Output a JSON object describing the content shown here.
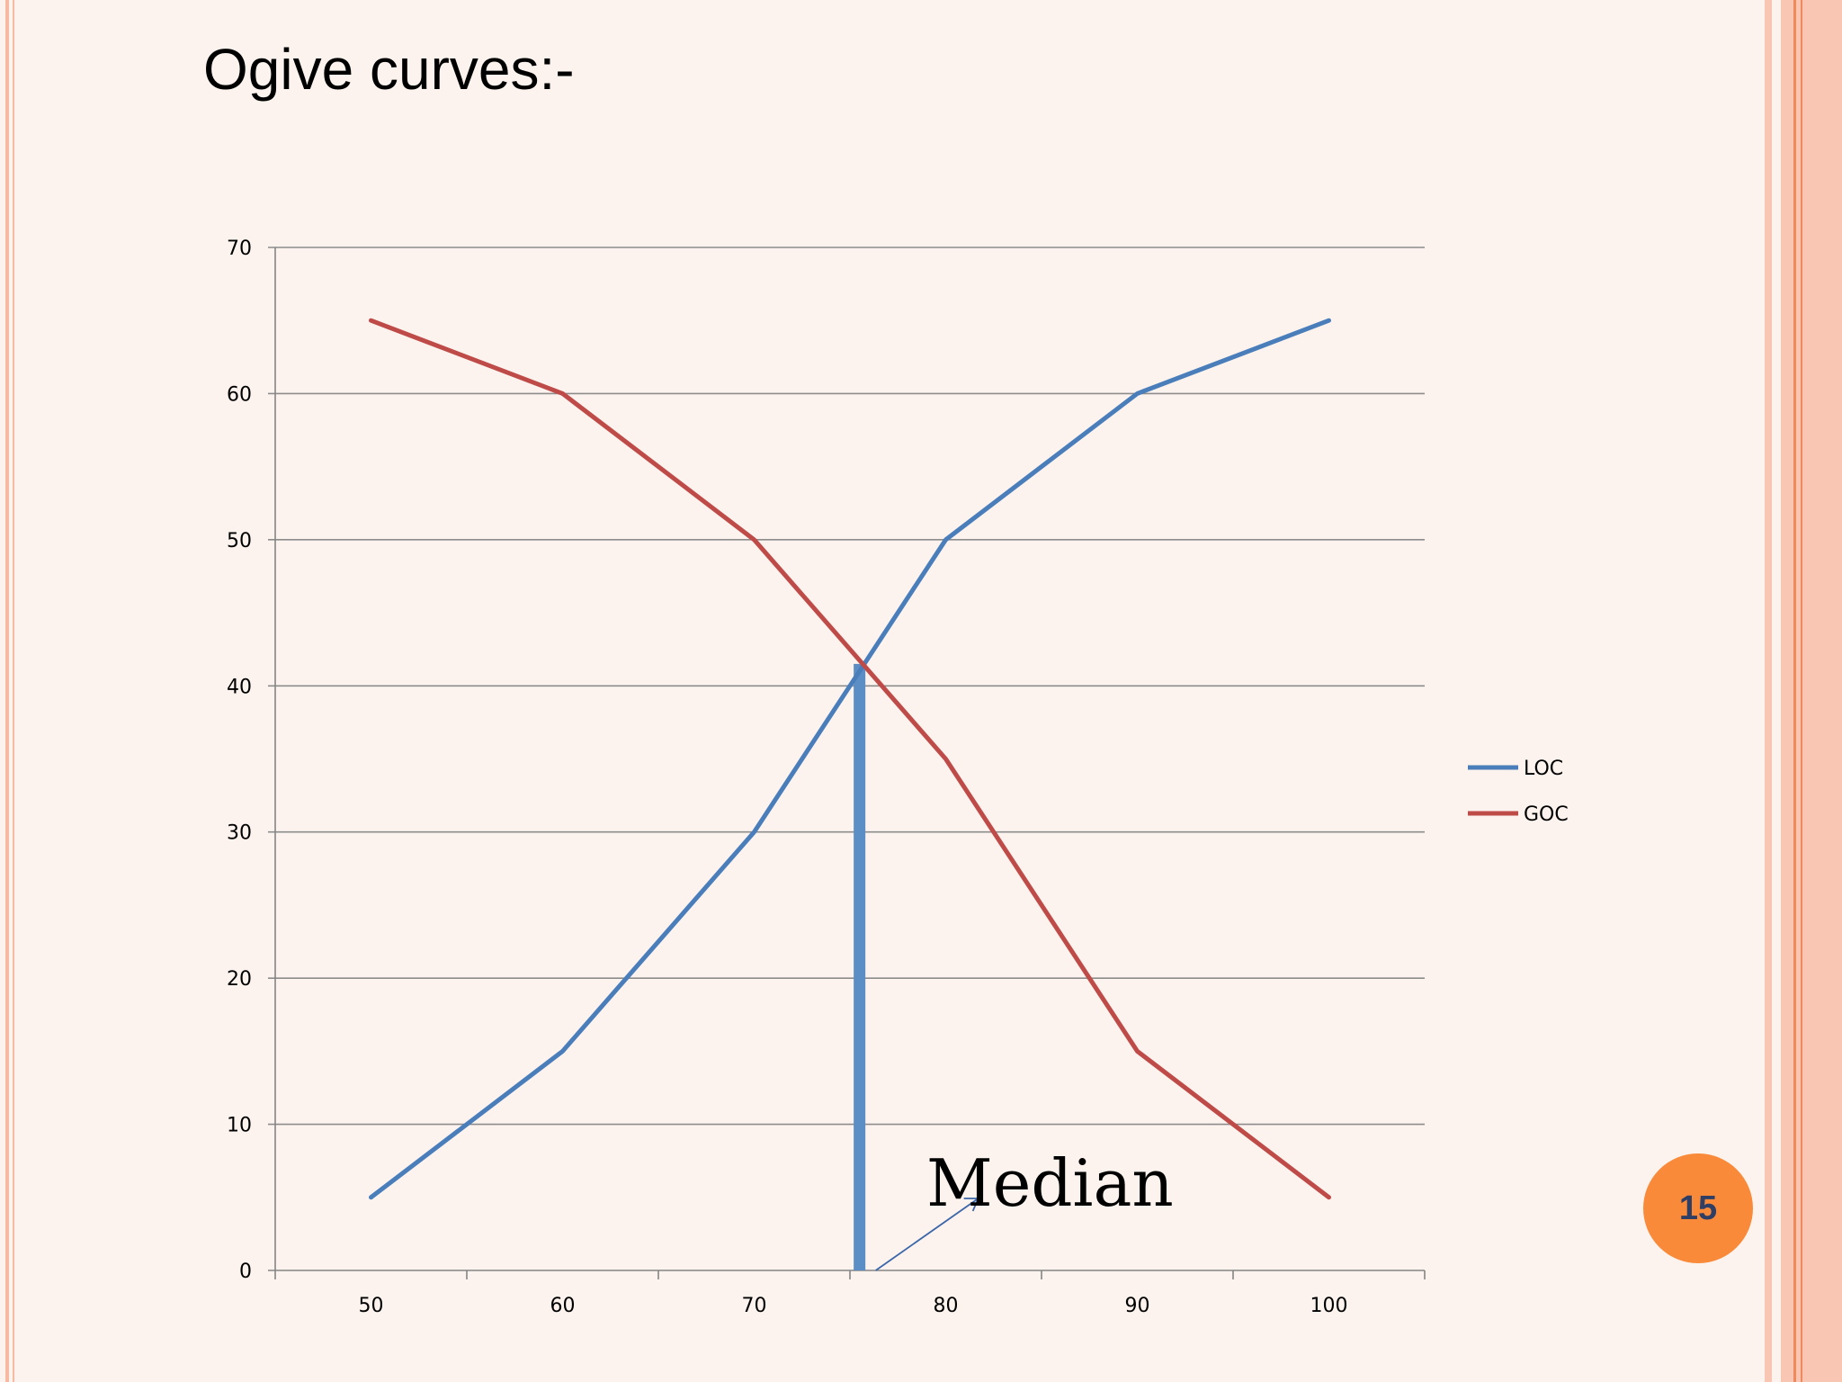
{
  "slide": {
    "title": "Ogive curves:-",
    "page_number": "15"
  },
  "colors": {
    "background": "#fdf3ee",
    "loc": "#4a7ebb",
    "goc": "#be4b48",
    "median_line": "#5b8ec4",
    "badge": "#f98a3a"
  },
  "chart_data": {
    "type": "line",
    "title": "",
    "xlabel": "",
    "ylabel": "",
    "x": [
      50,
      60,
      70,
      80,
      90,
      100
    ],
    "series": [
      {
        "name": "LOC",
        "values": [
          5,
          15,
          30,
          50,
          60,
          65
        ],
        "color": "#4a7ebb"
      },
      {
        "name": "GOC",
        "values": [
          65,
          60,
          50,
          35,
          15,
          5
        ],
        "color": "#be4b48"
      }
    ],
    "ylim": [
      0,
      70
    ],
    "yticks": [
      0,
      10,
      20,
      30,
      40,
      50,
      60,
      70
    ],
    "xlim": [
      45,
      105
    ],
    "grid": "horizontal",
    "legend": "right",
    "annotation": {
      "text": "Median",
      "median_x": 75.5,
      "median_y": 41.5
    }
  }
}
